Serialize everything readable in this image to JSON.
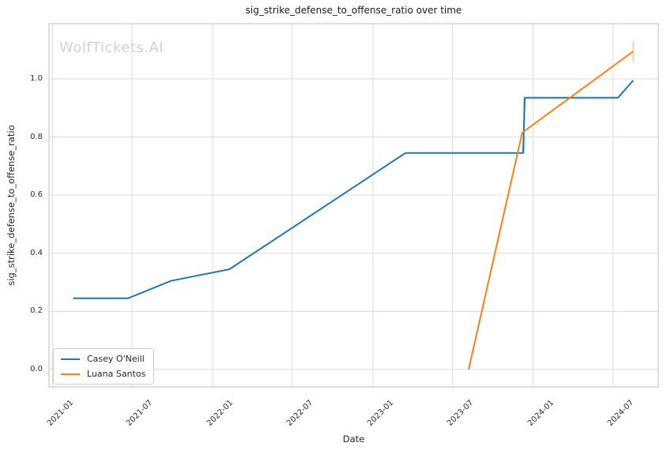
{
  "watermark": "WolfTickets.AI",
  "chart_data": {
    "type": "line",
    "title": "sig_strike_defense_to_offense_ratio over time",
    "xlabel": "Date",
    "ylabel": "sig_strike_defense_to_offense_ratio",
    "xlim": [
      "2020-12-24",
      "2024-10-12"
    ],
    "ylim": [
      -0.06,
      1.19
    ],
    "grid": true,
    "grid_color": "#dcdcdc",
    "spine_color": "#c8c8c8",
    "legend_position": "lower left",
    "x_ticks": [
      {
        "label": "2021-01",
        "date": "2021-01-01"
      },
      {
        "label": "2021-07",
        "date": "2021-07-01"
      },
      {
        "label": "2022-01",
        "date": "2022-01-01"
      },
      {
        "label": "2022-07",
        "date": "2022-07-01"
      },
      {
        "label": "2023-01",
        "date": "2023-01-01"
      },
      {
        "label": "2023-07",
        "date": "2023-07-01"
      },
      {
        "label": "2024-01",
        "date": "2024-01-01"
      },
      {
        "label": "2024-07",
        "date": "2024-07-01"
      }
    ],
    "y_ticks": [
      {
        "label": "0.0",
        "value": 0.0
      },
      {
        "label": "0.2",
        "value": 0.2
      },
      {
        "label": "0.4",
        "value": 0.4
      },
      {
        "label": "0.6",
        "value": 0.6
      },
      {
        "label": "0.8",
        "value": 0.8
      },
      {
        "label": "1.0",
        "value": 1.0
      }
    ],
    "series": [
      {
        "name": "Casey O'Neill",
        "color": "#1f77b4",
        "points": [
          [
            "2021-02-17",
            0.245
          ],
          [
            "2021-06-22",
            0.245
          ],
          [
            "2021-09-28",
            0.305
          ],
          [
            "2022-02-08",
            0.345
          ],
          [
            "2023-03-16",
            0.745
          ],
          [
            "2023-12-09",
            0.745
          ],
          [
            "2023-12-13",
            0.935
          ],
          [
            "2024-07-12",
            0.935
          ],
          [
            "2024-08-16",
            0.995
          ]
        ]
      },
      {
        "name": "Luana Santos",
        "color": "#ff7f0e",
        "points": [
          [
            "2023-08-07",
            0.0
          ],
          [
            "2023-12-07",
            0.815
          ],
          [
            "2024-08-16",
            1.095
          ]
        ]
      }
    ],
    "error_bars": [
      {
        "series": "Casey O'Neill",
        "date": "2023-12-11",
        "low": 0.745,
        "high": 0.935,
        "color": "rgba(31,119,180,0.32)"
      },
      {
        "series": "Luana Santos",
        "date": "2024-08-16",
        "low": 1.06,
        "high": 1.13,
        "color": "rgba(255,127,14,0.38)"
      }
    ]
  }
}
